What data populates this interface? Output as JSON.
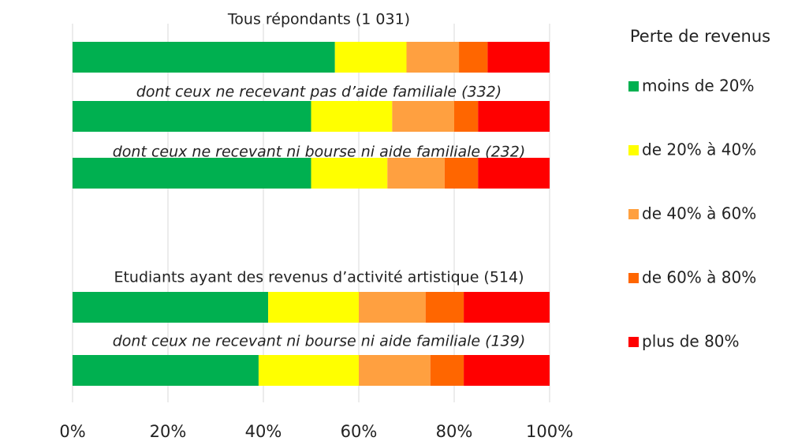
{
  "chart_data": {
    "type": "stacked-bar-horizontal",
    "categories": [
      "Tous répondants (1 031)",
      "dont ceux ne recevant pas d’aide familiale (332)",
      "dont ceux ne recevant ni bourse ni aide familiale (232)",
      "Etudiants ayant des revenus d’activité artistique (514)",
      "dont ceux ne recevant ni bourse ni aide familiale (139)"
    ],
    "series": [
      {
        "name": "moins de 20%",
        "color": "#00b050",
        "values": [
          55,
          50,
          50,
          41,
          39
        ]
      },
      {
        "name": "de 20% à 40%",
        "color": "#ffff00",
        "values": [
          15,
          17,
          16,
          19,
          21
        ]
      },
      {
        "name": "de 40% à 60%",
        "color": "#ffa040",
        "values": [
          11,
          13,
          12,
          14,
          15
        ]
      },
      {
        "name": "de 60% à 80%",
        "color": "#ff6600",
        "values": [
          6,
          5,
          7,
          8,
          7
        ]
      },
      {
        "name": "plus de 80%",
        "color": "#ff0000",
        "values": [
          13,
          15,
          15,
          18,
          18
        ]
      }
    ],
    "legend_title": "Perte de revenus",
    "legend": "right",
    "xlim": [
      0,
      100
    ],
    "xticks": [
      {
        "value": 0,
        "label": "0%"
      },
      {
        "value": 20,
        "label": "20%"
      },
      {
        "value": 40,
        "label": "40%"
      },
      {
        "value": 60,
        "label": "60%"
      },
      {
        "value": 80,
        "label": "80%"
      },
      {
        "value": 100,
        "label": "100%"
      }
    ],
    "grid": true
  }
}
